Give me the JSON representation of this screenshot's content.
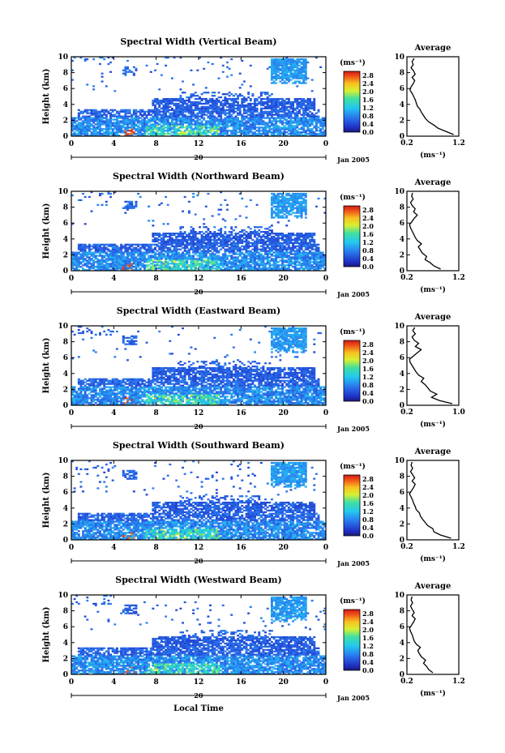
{
  "chart_data": [
    {
      "type": "heatmap",
      "title": "Spectral Width (Vertical Beam)",
      "ylabel": "Height (km)",
      "xticks": [
        "0",
        "4",
        "8",
        "12",
        "16",
        "20",
        "0"
      ],
      "yticks": [
        "0",
        "2",
        "4",
        "6",
        "8",
        "10"
      ],
      "date_day": "20",
      "date_label": "Jan 2005",
      "colorbar": {
        "unit": "(ms⁻¹)",
        "ticks": [
          "0.0",
          "0.4",
          "0.8",
          "1.2",
          "1.6",
          "2.0",
          "2.4",
          "2.8"
        ],
        "range": [
          0,
          3.0
        ]
      },
      "avg": {
        "title": "Average",
        "xlabel": "(ms⁻¹)",
        "xticks": [
          "0.2",
          "1.2"
        ],
        "xlim": [
          0.2,
          1.2
        ],
        "yticks": [
          "0",
          "2",
          "4",
          "6",
          "8",
          "10"
        ],
        "height": [
          0.2,
          0.6,
          1.0,
          1.4,
          1.8,
          2.2,
          2.6,
          3.0,
          3.4,
          3.8,
          4.2,
          4.6,
          5.0,
          5.4,
          5.8,
          6.2,
          6.6,
          7.0,
          7.4,
          7.8,
          8.2,
          8.6,
          9.0,
          9.4,
          9.8
        ],
        "width": [
          1.1,
          0.95,
          0.8,
          0.72,
          0.62,
          0.56,
          0.52,
          0.48,
          0.45,
          0.4,
          0.38,
          0.36,
          0.33,
          0.3,
          0.26,
          0.28,
          0.32,
          0.35,
          0.3,
          0.36,
          0.33,
          0.28,
          0.32,
          0.3,
          0.34
        ]
      }
    },
    {
      "type": "heatmap",
      "title": "Spectral Width (Northward Beam)",
      "ylabel": "Height (km)",
      "xticks": [
        "0",
        "4",
        "8",
        "12",
        "16",
        "20",
        "0"
      ],
      "yticks": [
        "0",
        "2",
        "4",
        "6",
        "8",
        "10"
      ],
      "date_day": "20",
      "date_label": "Jan 2005",
      "colorbar": {
        "unit": "(ms⁻¹)",
        "ticks": [
          "0.0",
          "0.4",
          "0.8",
          "1.2",
          "1.6",
          "2.0",
          "2.4",
          "2.8"
        ],
        "range": [
          0,
          3.0
        ]
      },
      "avg": {
        "title": "Average",
        "xlabel": "(ms⁻¹)",
        "xticks": [
          "0.2",
          "1.2"
        ],
        "xlim": [
          0.2,
          1.2
        ],
        "yticks": [
          "0",
          "2",
          "4",
          "6",
          "8",
          "10"
        ],
        "height": [
          0.2,
          0.6,
          1.0,
          1.4,
          1.8,
          2.2,
          2.6,
          3.0,
          3.4,
          3.8,
          4.2,
          4.6,
          5.0,
          5.4,
          5.8,
          6.2,
          6.6,
          7.0,
          7.4,
          7.8,
          8.2,
          8.6,
          9.0,
          9.4,
          9.8
        ],
        "width": [
          0.85,
          0.72,
          0.65,
          0.55,
          0.58,
          0.5,
          0.46,
          0.42,
          0.48,
          0.4,
          0.36,
          0.33,
          0.3,
          0.27,
          0.25,
          0.3,
          0.34,
          0.4,
          0.33,
          0.36,
          0.3,
          0.27,
          0.32,
          0.29,
          0.31
        ]
      }
    },
    {
      "type": "heatmap",
      "title": "Spectral Width (Eastward Beam)",
      "ylabel": "Height (km)",
      "xticks": [
        "0",
        "4",
        "8",
        "12",
        "16",
        "20",
        "0"
      ],
      "yticks": [
        "0",
        "2",
        "4",
        "6",
        "8",
        "10"
      ],
      "date_day": "20",
      "date_label": "Jan 2005",
      "colorbar": {
        "unit": "(ms⁻¹)",
        "ticks": [
          "0.0",
          "0.4",
          "0.8",
          "1.2",
          "1.6",
          "2.0",
          "2.4",
          "2.8"
        ],
        "range": [
          0,
          3.0
        ]
      },
      "avg": {
        "title": "Average",
        "xlabel": "(ms⁻¹)",
        "xticks": [
          "0.2",
          "1.0"
        ],
        "xlim": [
          0.2,
          1.0
        ],
        "yticks": [
          "0",
          "2",
          "4",
          "6",
          "8",
          "10"
        ],
        "height": [
          0.2,
          0.6,
          1.0,
          1.4,
          1.8,
          2.2,
          2.6,
          3.0,
          3.4,
          3.8,
          4.2,
          4.6,
          5.0,
          5.4,
          5.8,
          6.2,
          6.6,
          7.0,
          7.4,
          7.8,
          8.2,
          8.6,
          9.0,
          9.4,
          9.8
        ],
        "width": [
          0.9,
          0.7,
          0.58,
          0.66,
          0.56,
          0.52,
          0.48,
          0.42,
          0.46,
          0.38,
          0.34,
          0.31,
          0.28,
          0.25,
          0.24,
          0.3,
          0.36,
          0.42,
          0.33,
          0.38,
          0.31,
          0.28,
          0.33,
          0.29,
          0.32
        ]
      }
    },
    {
      "type": "heatmap",
      "title": "Spectral Width (Southward Beam)",
      "ylabel": "Height (km)",
      "xticks": [
        "0",
        "4",
        "8",
        "12",
        "16",
        "20",
        "0"
      ],
      "yticks": [
        "0",
        "2",
        "4",
        "6",
        "8",
        "10"
      ],
      "date_day": "20",
      "date_label": "Jan 2005",
      "colorbar": {
        "unit": "(ms⁻¹)",
        "ticks": [
          "0.0",
          "0.4",
          "0.8",
          "1.2",
          "1.6",
          "2.0",
          "2.4",
          "2.8"
        ],
        "range": [
          0,
          3.0
        ]
      },
      "avg": {
        "title": "Average",
        "xlabel": "(ms⁻¹)",
        "xticks": [
          "0.2",
          "1.2"
        ],
        "xlim": [
          0.2,
          1.2
        ],
        "yticks": [
          "0",
          "2",
          "4",
          "6",
          "8",
          "10"
        ],
        "height": [
          0.2,
          0.6,
          1.0,
          1.4,
          1.8,
          2.2,
          2.6,
          3.0,
          3.4,
          3.8,
          4.2,
          4.6,
          5.0,
          5.4,
          5.8,
          6.2,
          6.6,
          7.0,
          7.4,
          7.8,
          8.2,
          8.6,
          9.0,
          9.4,
          9.8
        ],
        "width": [
          1.05,
          0.85,
          0.72,
          0.7,
          0.6,
          0.55,
          0.5,
          0.46,
          0.44,
          0.38,
          0.36,
          0.33,
          0.31,
          0.28,
          0.25,
          0.29,
          0.33,
          0.36,
          0.3,
          0.35,
          0.31,
          0.27,
          0.31,
          0.28,
          0.3
        ]
      }
    },
    {
      "type": "heatmap",
      "title": "Spectral Width (Westward Beam)",
      "ylabel": "Height (km)",
      "xlabel": "Local Time",
      "xticks": [
        "0",
        "4",
        "8",
        "12",
        "16",
        "20",
        "0"
      ],
      "yticks": [
        "0",
        "2",
        "4",
        "6",
        "8",
        "10"
      ],
      "date_day": "20",
      "date_label": "Jan 2005",
      "colorbar": {
        "unit": "(ms⁻¹)",
        "ticks": [
          "0.0",
          "0.4",
          "0.8",
          "1.2",
          "1.6",
          "2.0",
          "2.4",
          "2.8"
        ],
        "range": [
          0,
          3.0
        ]
      },
      "avg": {
        "title": "Average",
        "xlabel": "(ms⁻¹)",
        "xticks": [
          "0.2",
          "1.2"
        ],
        "xlim": [
          0.2,
          1.2
        ],
        "yticks": [
          "0",
          "2",
          "4",
          "6",
          "8",
          "10"
        ],
        "height": [
          0.2,
          0.6,
          1.0,
          1.4,
          1.8,
          2.2,
          2.6,
          3.0,
          3.4,
          3.8,
          4.2,
          4.6,
          5.0,
          5.4,
          5.8,
          6.2,
          6.6,
          7.0,
          7.4,
          7.8,
          8.2,
          8.6,
          9.0,
          9.4,
          9.8
        ],
        "width": [
          0.7,
          0.62,
          0.58,
          0.52,
          0.56,
          0.48,
          0.44,
          0.41,
          0.46,
          0.38,
          0.34,
          0.32,
          0.3,
          0.27,
          0.25,
          0.29,
          0.33,
          0.36,
          0.3,
          0.34,
          0.3,
          0.27,
          0.31,
          0.28,
          0.3
        ]
      }
    }
  ]
}
